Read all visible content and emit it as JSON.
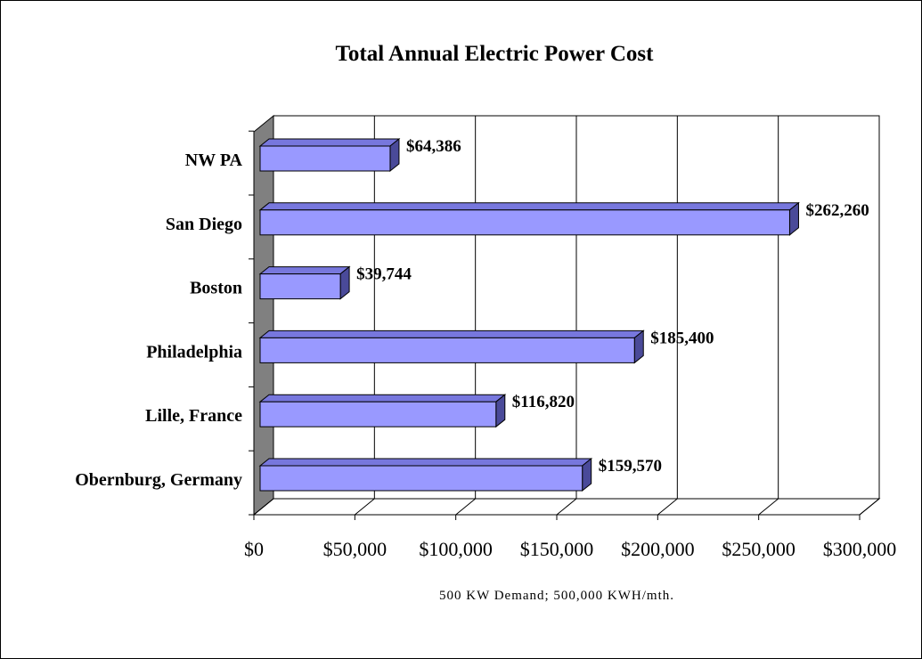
{
  "chart_data": {
    "type": "bar3d_horizontal",
    "title": "Total Annual Electric Power Cost",
    "x_label": "500 KW Demand; 500,000 KWH/mth.",
    "categories": [
      "NW PA",
      "San Diego",
      "Boston",
      "Philadelphia",
      "Lille, France",
      "Obernburg, Germany"
    ],
    "values": [
      64386,
      262260,
      39744,
      185400,
      116820,
      159570
    ],
    "value_labels": [
      "$64,386",
      "$262,260",
      "$39,744",
      "$185,400",
      "$116,820",
      "$159,570"
    ],
    "color": "#9999ff",
    "xlim": [
      0,
      300000
    ],
    "xticks": [
      {
        "value": 0,
        "label": "$0"
      },
      {
        "value": 50000,
        "label": "$50,000"
      },
      {
        "value": 100000,
        "label": "$100,000"
      },
      {
        "value": 150000,
        "label": "$150,000"
      },
      {
        "value": 200000,
        "label": "$200,000"
      },
      {
        "value": 250000,
        "label": "$250,000"
      },
      {
        "value": 300000,
        "label": "$300,000"
      }
    ],
    "grid": true
  }
}
